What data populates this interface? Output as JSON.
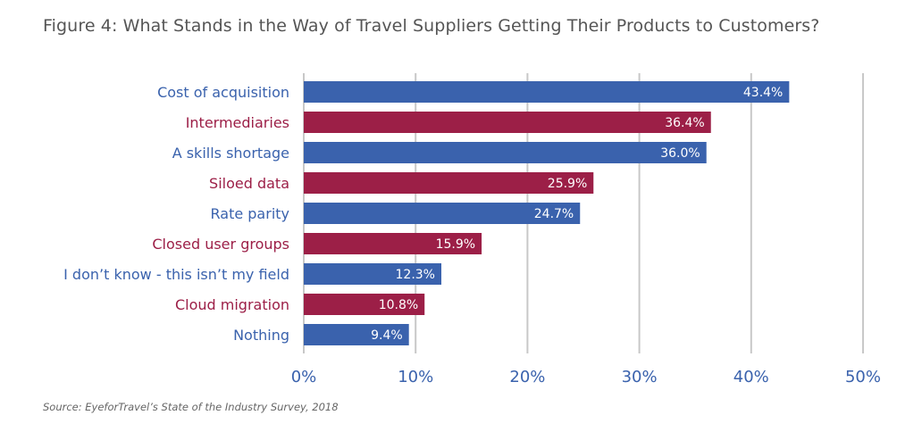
{
  "title": "Figure 4: What Stands in the Way of Travel Suppliers Getting Their Products to Customers?",
  "source": "Source: EyeforTravel’s State of the Industry Survey, 2018",
  "colors": {
    "blue": "#3a62ad",
    "red": "#9c1f47",
    "grid": "#c8c8c8",
    "tick": "#3a62ad"
  },
  "chart_data": {
    "type": "bar",
    "orientation": "horizontal",
    "title": "Figure 4: What Stands in the Way of Travel Suppliers Getting Their Products to Customers?",
    "categories": [
      "Cost of acquisition",
      "Intermediaries",
      "A skills shortage",
      "Siloed data",
      "Rate parity",
      "Closed user groups",
      "I don’t know - this isn’t my field",
      "Cloud migration",
      "Nothing"
    ],
    "values": [
      43.4,
      36.4,
      36.0,
      25.9,
      24.7,
      15.9,
      12.3,
      10.8,
      9.4
    ],
    "value_labels": [
      "43.4%",
      "36.4%",
      "36.0%",
      "25.9%",
      "24.7%",
      "15.9%",
      "12.3%",
      "10.8%",
      "9.4%"
    ],
    "bar_colors": [
      "#3a62ad",
      "#9c1f47",
      "#3a62ad",
      "#9c1f47",
      "#3a62ad",
      "#9c1f47",
      "#3a62ad",
      "#9c1f47",
      "#3a62ad"
    ],
    "xlim": [
      0,
      50
    ],
    "xticks": [
      0,
      10,
      20,
      30,
      40,
      50
    ],
    "xtick_labels": [
      "0%",
      "10%",
      "20%",
      "30%",
      "40%",
      "50%"
    ],
    "grid": "vertical",
    "xlabel": "",
    "ylabel": ""
  }
}
